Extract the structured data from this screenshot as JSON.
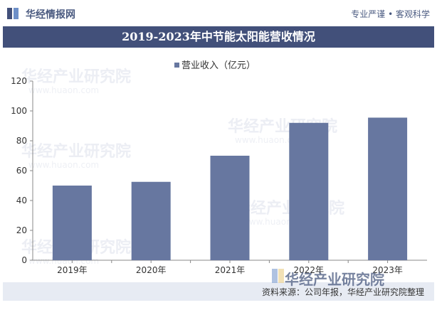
{
  "header": {
    "logo_text": "华经情报网",
    "tagline": "专业严谨 • 客观科学",
    "logo_icon": "huajing-logo-icon",
    "accent_color": "#42507a"
  },
  "watermark": {
    "text": "华经产业研究院",
    "url_text": "www.huaon.com"
  },
  "chart_data": {
    "type": "bar",
    "title": "2019-2023年中节能太阳能营收情况",
    "categories": [
      "2019年",
      "2020年",
      "2021年",
      "2022年",
      "2023年"
    ],
    "series": [
      {
        "name": "营业收入（亿元）",
        "values": [
          50,
          52.5,
          70,
          92,
          95.5
        ],
        "color": "#6777a0"
      }
    ],
    "ylim": [
      0,
      120
    ],
    "yticks": [
      0,
      20,
      40,
      60,
      80,
      100,
      120
    ],
    "xlabel": "",
    "ylabel": "",
    "legend": "top-center",
    "grid": false
  },
  "footer": {
    "source": "资料来源：公司年报，华经产业研究院整理"
  }
}
